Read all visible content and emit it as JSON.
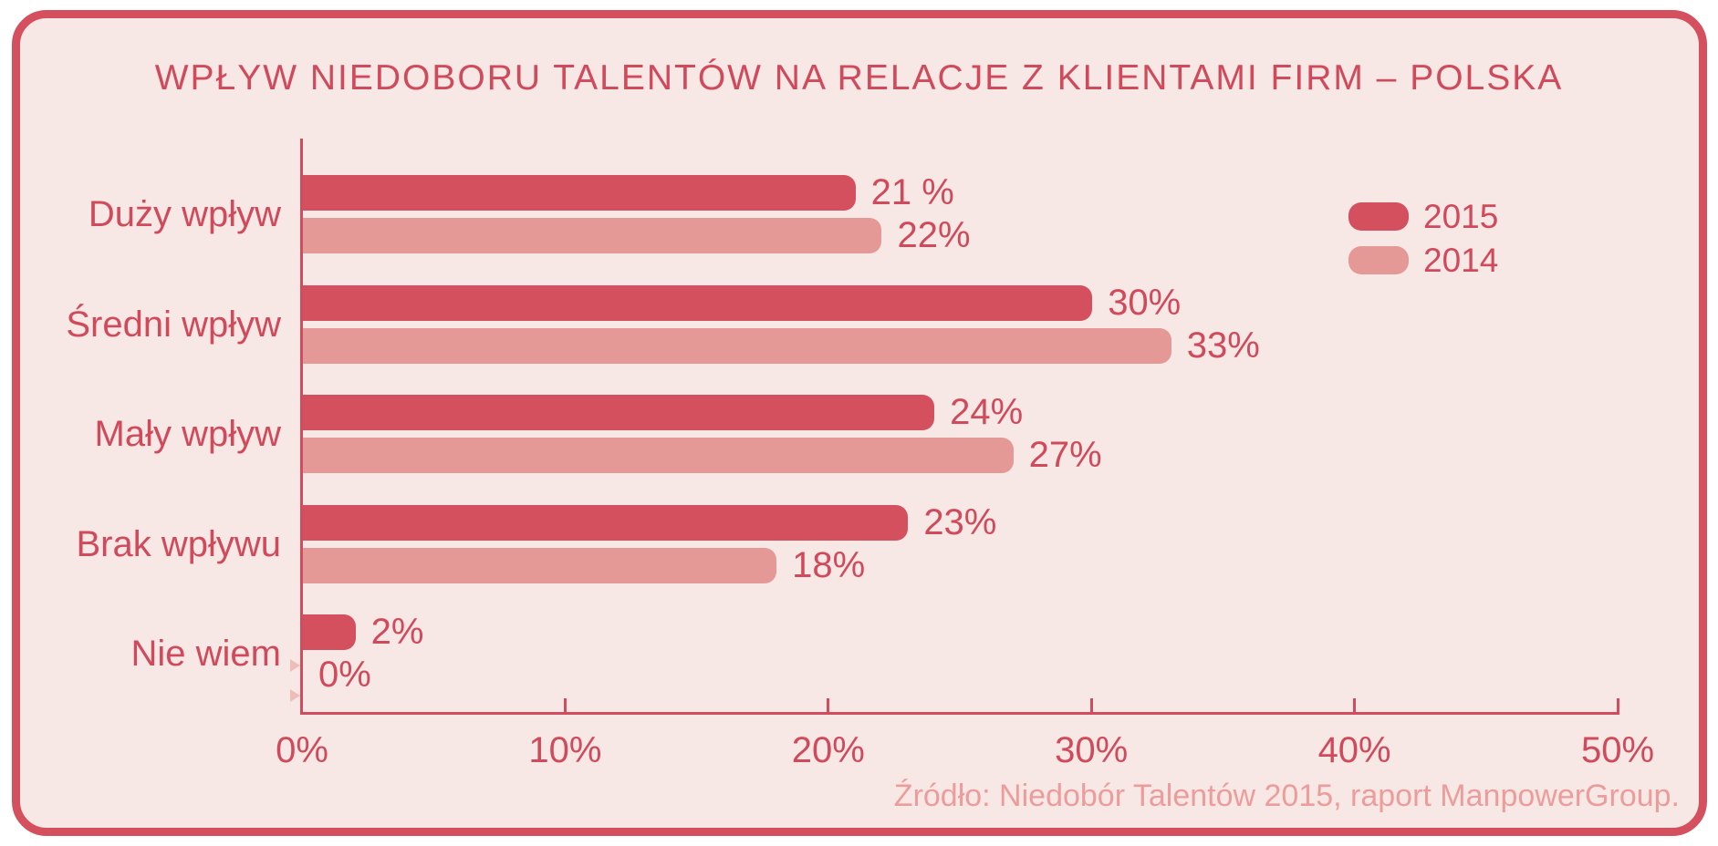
{
  "title": "WPŁYW NIEDOBORU TALENTÓW NA RELACJE Z KLIENTAMI FIRM – POLSKA",
  "source_note": "Źródło: Niedobór Talentów 2015, raport ManpowerGroup.",
  "colors": {
    "page_background": "#ffffff",
    "panel_background": "#F8E8E5",
    "panel_border": "#D4505E",
    "text": "#D04A5B",
    "axis": "#D14C5D",
    "source_text": "#EC9D9B",
    "zero_marker": "#EFBDB9"
  },
  "chart_data": {
    "type": "bar",
    "orientation": "horizontal",
    "title": "WPŁYW NIEDOBORU TALENTÓW NA RELACJE Z KLIENTAMI FIRM – POLSKA",
    "categories": [
      "Duży wpływ",
      "Średni wpływ",
      "Mały wpływ",
      "Brak wpływu",
      "Nie wiem"
    ],
    "series": [
      {
        "name": "2015",
        "color": "#D4505E",
        "values": [
          21,
          30,
          24,
          23,
          2
        ],
        "labels": [
          "21 %",
          "30%",
          "24%",
          "23%",
          "2%"
        ]
      },
      {
        "name": "2014",
        "color": "#E49997",
        "values": [
          22,
          33,
          27,
          18,
          0
        ],
        "labels": [
          "22%",
          "33%",
          "27%",
          "18%",
          "0%"
        ]
      }
    ],
    "xlabel": "",
    "ylabel": "",
    "xlim": [
      0,
      50
    ],
    "x_ticks": [
      {
        "value": 0,
        "label": "0%"
      },
      {
        "value": 10,
        "label": "10%"
      },
      {
        "value": 20,
        "label": "20%"
      },
      {
        "value": 30,
        "label": "30%"
      },
      {
        "value": 40,
        "label": "40%"
      },
      {
        "value": 50,
        "label": "50%"
      }
    ],
    "grid": false,
    "legend_position": "top-right"
  }
}
